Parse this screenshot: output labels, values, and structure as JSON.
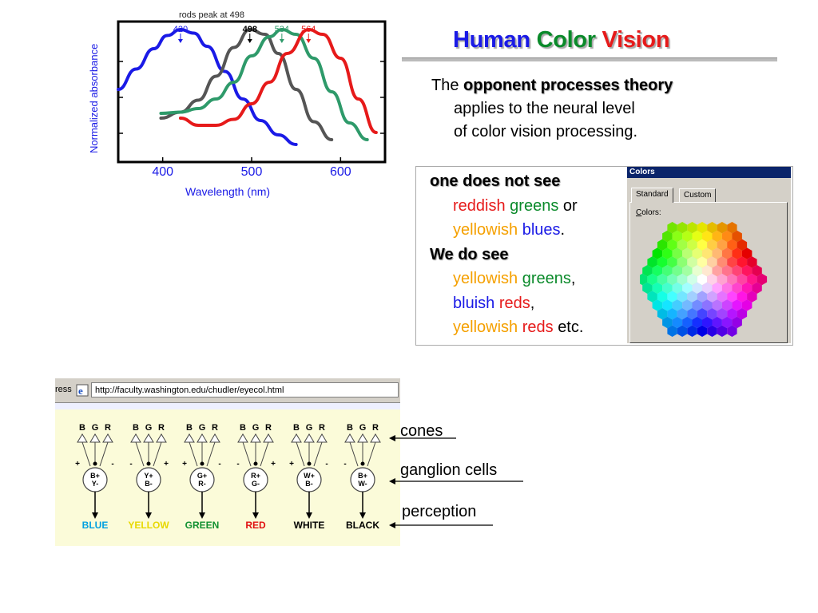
{
  "slide_title": {
    "w1": "Human",
    "w2": "Color",
    "w3": "Vision"
  },
  "colors": {
    "blue": "#1a1ae6",
    "green": "#0a8a2a",
    "red": "#e61a1a",
    "orange": "#f5a000",
    "dark_green": "#0b7d2b"
  },
  "theory": {
    "the": "The",
    "bold": "opponent processes theory",
    "line2": "applies to the neural level",
    "line3": "of color vision processing."
  },
  "box": {
    "h1": "one does not see",
    "r1a": "reddish",
    "r1b": "greens",
    "r1c": "or",
    "r2a": "yellowish",
    "r2b": "blues",
    "r2c": ".",
    "h2": "We do see",
    "r3a": "yellowish",
    "r3b": "greens",
    "r3c": ",",
    "r4a": "bluish",
    "r4b": "reds",
    "r4c": ",",
    "r5a": "yellowish",
    "r5b": "reds",
    "r5c": "etc."
  },
  "colors_dialog": {
    "title": "Colors",
    "tab_standard": "Standard",
    "tab_custom": "Custom",
    "colors_label": "Colors:"
  },
  "browser": {
    "address_label": "ress",
    "url": "http://faculty.washington.edu/chudler/eyecol.html"
  },
  "cones_diagram": {
    "cone_letters": [
      "B",
      "G",
      "R"
    ],
    "cells": [
      {
        "label1": "B+",
        "label2": "Y-",
        "signs": [
          "+",
          "-"
        ],
        "perception": "BLUE",
        "color": "#00a0e0"
      },
      {
        "label1": "Y+",
        "label2": "B-",
        "signs": [
          "-",
          "+"
        ],
        "perception": "YELLOW",
        "color": "#e8d800"
      },
      {
        "label1": "G+",
        "label2": "R-",
        "signs": [
          "+",
          "-"
        ],
        "perception": "GREEN",
        "color": "#109030"
      },
      {
        "label1": "R+",
        "label2": "G-",
        "signs": [
          "-",
          "+"
        ],
        "perception": "RED",
        "color": "#e01010"
      },
      {
        "label1": "W+",
        "label2": "B-",
        "signs": [
          "+",
          "-"
        ],
        "perception": "WHITE",
        "color": "#000000"
      },
      {
        "label1": "B+",
        "label2": "W-",
        "signs": [
          "-",
          ""
        ],
        "perception": "BLACK",
        "color": "#000000"
      }
    ]
  },
  "right_labels": {
    "cones": "cones",
    "ganglion": "ganglion cells",
    "perception": "perception"
  },
  "chart_data": {
    "type": "line",
    "ylabel": "Normalized absorbance",
    "xlabel": "Wavelength (nm)",
    "xlim": [
      350,
      650
    ],
    "ylim": [
      0,
      1
    ],
    "x_ticks": [
      400,
      500,
      600
    ],
    "annotation": "rods peak at 498",
    "series": [
      {
        "name": "420",
        "color": "#1a1ae6",
        "x": [
          350,
          370,
          390,
          405,
          420,
          435,
          450,
          470,
          490,
          510,
          530,
          550
        ],
        "y": [
          0.5,
          0.67,
          0.84,
          0.95,
          1.0,
          0.97,
          0.86,
          0.65,
          0.42,
          0.24,
          0.12,
          0.04
        ]
      },
      {
        "name": "498",
        "color": "#555555",
        "x": [
          398,
          420,
          440,
          460,
          480,
          498,
          515,
          530,
          550,
          570,
          590
        ],
        "y": [
          0.26,
          0.31,
          0.41,
          0.61,
          0.85,
          1.0,
          0.96,
          0.8,
          0.5,
          0.23,
          0.08
        ]
      },
      {
        "name": "534",
        "color": "#2e9a6a",
        "x": [
          398,
          420,
          440,
          460,
          480,
          500,
          520,
          534,
          550,
          570,
          590,
          610,
          630
        ],
        "y": [
          0.3,
          0.31,
          0.34,
          0.42,
          0.56,
          0.78,
          0.94,
          1.0,
          0.96,
          0.76,
          0.48,
          0.22,
          0.08
        ]
      },
      {
        "name": "564",
        "color": "#e61a1a",
        "x": [
          420,
          440,
          460,
          480,
          500,
          520,
          540,
          564,
          580,
          600,
          620,
          640
        ],
        "y": [
          0.26,
          0.2,
          0.2,
          0.25,
          0.38,
          0.56,
          0.8,
          1.0,
          0.96,
          0.76,
          0.42,
          0.14
        ]
      }
    ]
  }
}
